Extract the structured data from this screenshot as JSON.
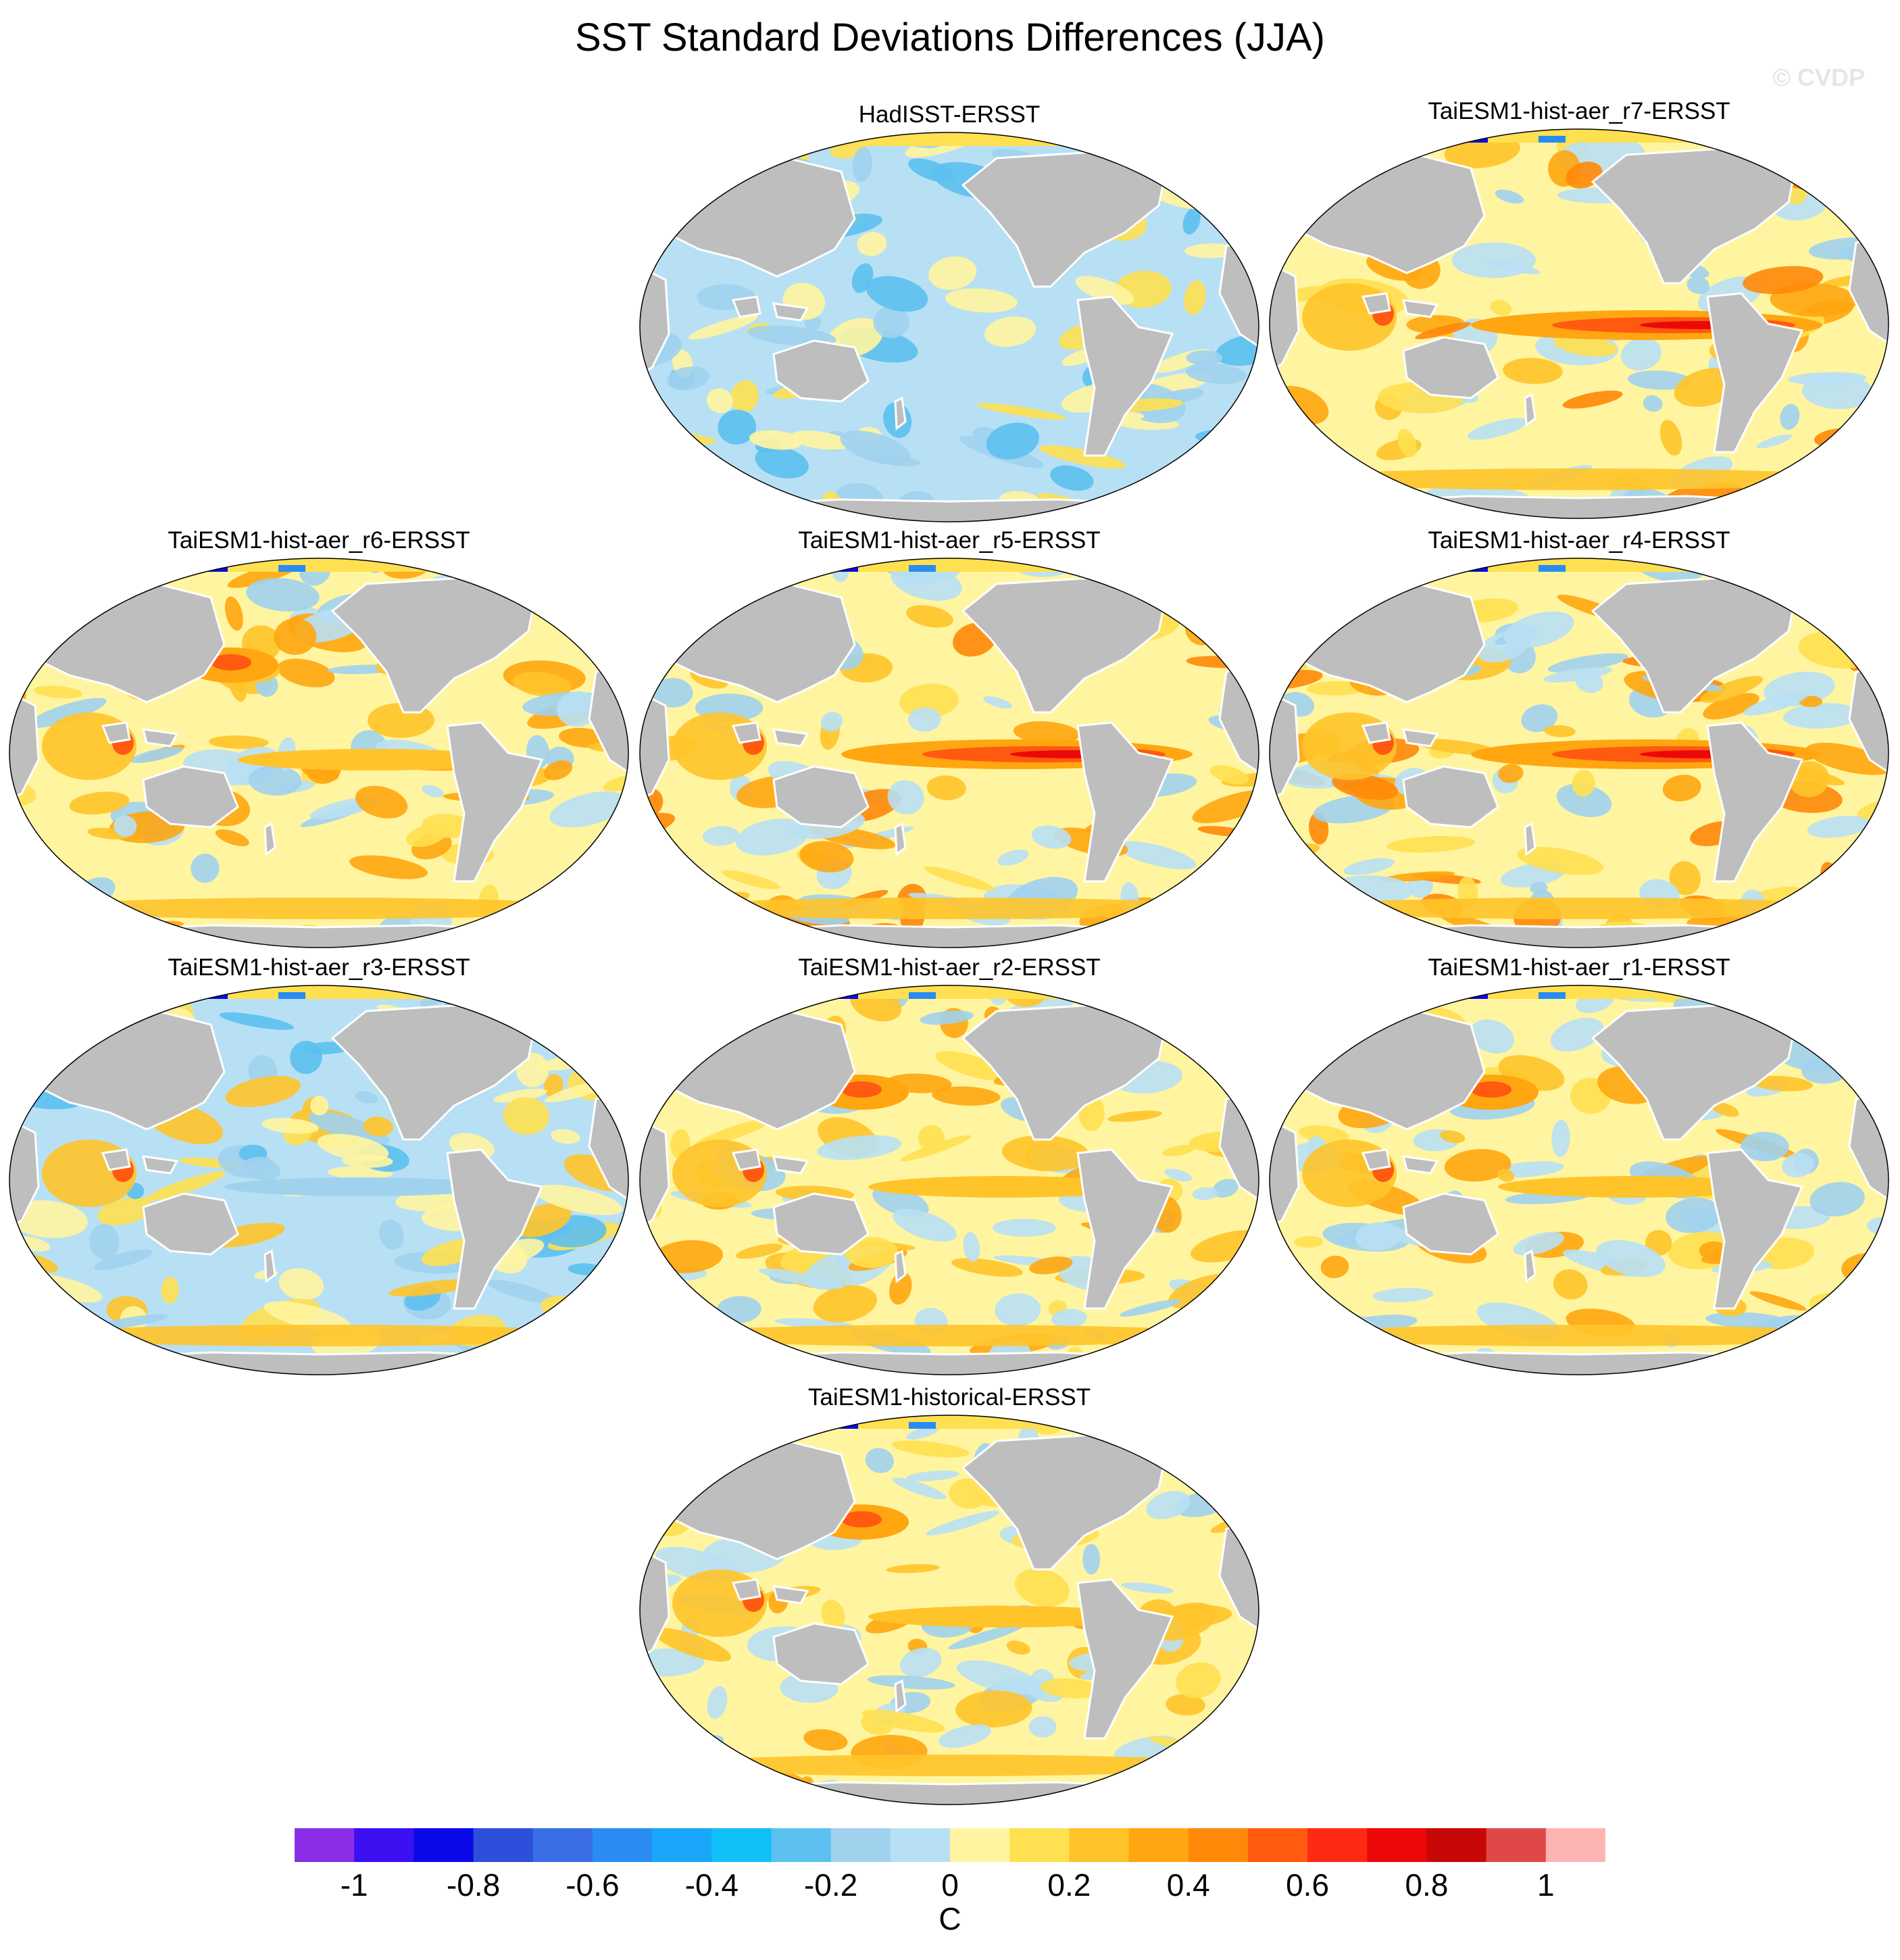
{
  "title": "SST Standard Deviations Differences (JJA)",
  "watermark": "© CVDP",
  "panels": [
    {
      "title": "HadISST-ERSST",
      "pattern": "weak-negative"
    },
    {
      "title": "TaiESM1-hist-aer_r7-ERSST",
      "pattern": "enso-strong"
    },
    {
      "title": "TaiESM1-hist-aer_r6-ERSST",
      "pattern": "mixed-positive"
    },
    {
      "title": "TaiESM1-hist-aer_r5-ERSST",
      "pattern": "enso-strong"
    },
    {
      "title": "TaiESM1-hist-aer_r4-ERSST",
      "pattern": "enso-strong"
    },
    {
      "title": "TaiESM1-hist-aer_r3-ERSST",
      "pattern": "mixed-negative"
    },
    {
      "title": "TaiESM1-hist-aer_r2-ERSST",
      "pattern": "mixed-positive"
    },
    {
      "title": "TaiESM1-hist-aer_r1-ERSST",
      "pattern": "mixed-positive"
    },
    {
      "title": "TaiESM1-historical-ERSST",
      "pattern": "mixed-positive"
    }
  ],
  "colorbar": {
    "units": "C",
    "tick_labels": [
      "-1",
      "-0.8",
      "-0.6",
      "-0.4",
      "-0.2",
      "0",
      "0.2",
      "0.4",
      "0.6",
      "0.8",
      "1"
    ],
    "colors": [
      "#8a2ee8",
      "#3c10f0",
      "#0a0ae8",
      "#2e4edc",
      "#3a6ee6",
      "#2a8cf2",
      "#1aa6f8",
      "#10c0f8",
      "#5cc0f0",
      "#a0d2ee",
      "#b8e0f4",
      "#fff5a0",
      "#ffe050",
      "#ffc42a",
      "#ffa610",
      "#ff8808",
      "#ff5a10",
      "#ff2a14",
      "#ec0808",
      "#c80808",
      "#e04848",
      "#ffb4b4"
    ]
  },
  "map_colors": {
    "land": "#bebebe",
    "coast": "#ffffff",
    "ocean_base": "#b8e0f4"
  }
}
